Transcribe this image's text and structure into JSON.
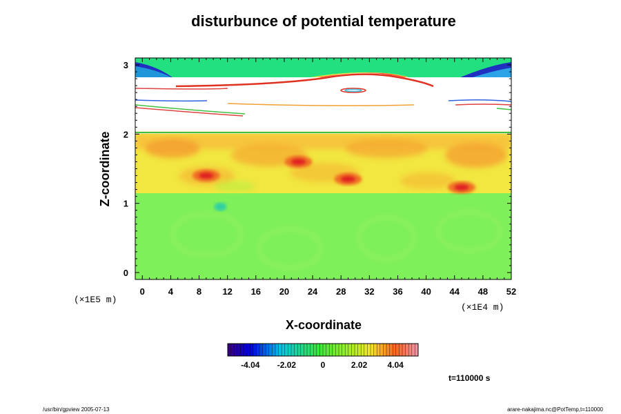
{
  "chart_data": {
    "type": "heatmap",
    "title": "disturbunce of potential temperature",
    "xlabel": "X-coordinate",
    "ylabel": "Z-coordinate",
    "x_scale_label": "(×1E4 m)",
    "y_scale_label": "(×1E5 m)",
    "xlim": [
      -1,
      52
    ],
    "ylim": [
      -0.1,
      3.1
    ],
    "x_ticks": [
      "0",
      "4",
      "8",
      "12",
      "16",
      "20",
      "24",
      "28",
      "32",
      "36",
      "40",
      "44",
      "48",
      "52"
    ],
    "y_ticks": [
      "0",
      "1",
      "2",
      "3"
    ],
    "colorbar": {
      "range": [
        -5.3,
        5.3
      ],
      "tick_labels": [
        "-4.04",
        "-2.02",
        "0",
        "2.02",
        "4.04"
      ],
      "tick_values": [
        -4.04,
        -2.02,
        0,
        2.02,
        4.04
      ]
    },
    "field": {
      "lower_layer": {
        "z_range": [
          0,
          1.1
        ],
        "approx_value": 0.3
      },
      "middle_layer": {
        "z_range": [
          1.1,
          2.0
        ],
        "approx_value": 2.5
      },
      "undefined_gap": {
        "z_range": [
          2.0,
          2.8
        ]
      },
      "upper_band": {
        "z_range": [
          2.8,
          3.05
        ],
        "approx_value": 0.5
      },
      "hot_spots": [
        {
          "x": 22,
          "z": 1.6,
          "value": 4.5
        },
        {
          "x": 9,
          "z": 1.4,
          "value": 4.2
        },
        {
          "x": 29,
          "z": 1.35,
          "value": 3.8
        },
        {
          "x": 45,
          "z": 1.23,
          "value": 4.6
        }
      ],
      "cold_spot": {
        "x": 11,
        "z": 0.95,
        "value": -1.8
      }
    },
    "time_label": "t=110000 s",
    "footer_left": "/usr/bin/gpview 2005-07-13",
    "footer_right": "arare-nakajima.nc@PotTemp,t=110000"
  }
}
